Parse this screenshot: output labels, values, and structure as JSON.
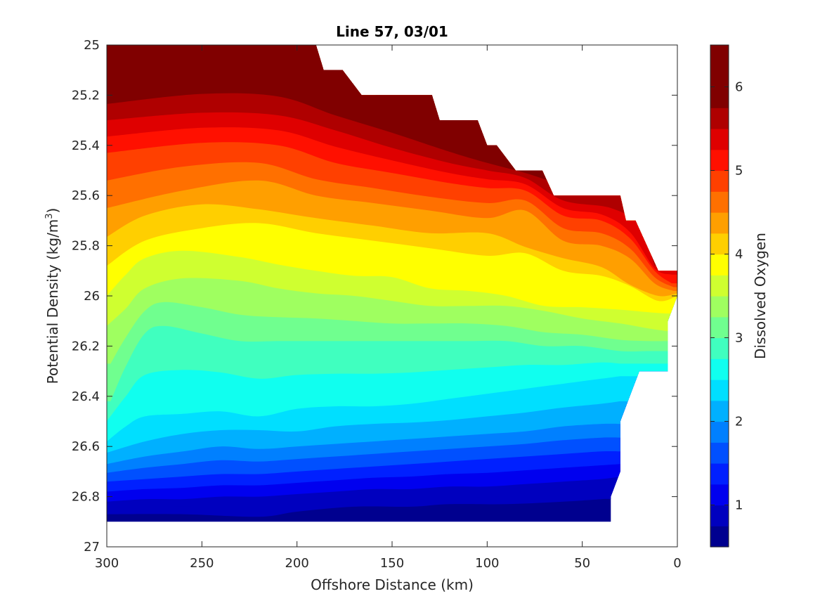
{
  "chart_data": {
    "type": "heatmap",
    "subtype": "filled-contour",
    "title": "Line 57, 03/01",
    "xlabel": "Offshore Distance (km)",
    "ylabel_main": "Potential Density (kg/m",
    "ylabel_sup": "3",
    "ylabel_close": ")",
    "colorbar_label": "Dissolved Oxygen",
    "x_ticks": [
      "300",
      "250",
      "200",
      "150",
      "100",
      "50",
      "0"
    ],
    "y_ticks": [
      "25",
      "25.2",
      "25.4",
      "25.6",
      "25.8",
      "26",
      "26.2",
      "26.4",
      "26.6",
      "26.8",
      "27"
    ],
    "colorbar_ticks": [
      "1",
      "2",
      "3",
      "4",
      "5",
      "6"
    ],
    "xlim": [
      300,
      0
    ],
    "ylim": [
      25,
      27
    ],
    "clim": [
      0.5,
      6.5
    ],
    "contour_levels": [
      0.5,
      0.75,
      1.0,
      1.25,
      1.5,
      1.75,
      2.0,
      2.25,
      2.5,
      2.75,
      3.0,
      3.25,
      3.5,
      3.75,
      4.0,
      4.25,
      4.5,
      4.75,
      5.0,
      5.25,
      5.5,
      5.75,
      6.0,
      6.25,
      6.5
    ],
    "colormap": [
      "#00008f",
      "#0000bf",
      "#0000ef",
      "#0020ff",
      "#0050ff",
      "#0080ff",
      "#00b0ff",
      "#00dfff",
      "#10ffef",
      "#40ffbf",
      "#70ff8f",
      "#9fff60",
      "#cfff30",
      "#ffff00",
      "#ffcf00",
      "#ff9f00",
      "#ff7000",
      "#ff4000",
      "#ff1000",
      "#df0000",
      "#af0000",
      "#800000",
      "#800000",
      "#800000"
    ],
    "data_top_boundary": [
      [
        300,
        25.0
      ],
      [
        190,
        25.0
      ],
      [
        186,
        25.1
      ],
      [
        176,
        25.1
      ],
      [
        166,
        25.2
      ],
      [
        129,
        25.2
      ],
      [
        125,
        25.3
      ],
      [
        105,
        25.3
      ],
      [
        100,
        25.4
      ],
      [
        95,
        25.4
      ],
      [
        85,
        25.5
      ],
      [
        71,
        25.5
      ],
      [
        65,
        25.6
      ],
      [
        30,
        25.6
      ],
      [
        27,
        25.7
      ],
      [
        22,
        25.7
      ],
      [
        10,
        25.9
      ],
      [
        0,
        25.9
      ]
    ],
    "data_bottom_boundary": [
      [
        300,
        26.9
      ],
      [
        35,
        26.9
      ],
      [
        35,
        26.8
      ],
      [
        30,
        26.7
      ],
      [
        30,
        26.5
      ],
      [
        25,
        26.4
      ],
      [
        20,
        26.3
      ],
      [
        5,
        26.3
      ],
      [
        5,
        26.1
      ],
      [
        0,
        26.0
      ]
    ],
    "isolines": [
      {
        "level": 6.0,
        "points": [
          [
            300,
            25.17
          ],
          [
            250,
            25.12
          ],
          [
            210,
            25.13
          ],
          [
            180,
            25.22
          ],
          [
            150,
            25.29
          ],
          [
            120,
            25.38
          ],
          [
            100,
            25.44
          ],
          [
            90,
            25.49
          ]
        ]
      },
      {
        "level": 5.5,
        "points": [
          [
            300,
            25.3
          ],
          [
            250,
            25.27
          ],
          [
            210,
            25.28
          ],
          [
            180,
            25.34
          ],
          [
            150,
            25.41
          ],
          [
            120,
            25.47
          ],
          [
            100,
            25.5
          ],
          [
            80,
            25.53
          ],
          [
            60,
            25.62
          ],
          [
            35,
            25.65
          ],
          [
            20,
            25.72
          ],
          [
            12,
            25.88
          ]
        ]
      },
      {
        "level": 5.0,
        "points": [
          [
            300,
            25.43
          ],
          [
            250,
            25.39
          ],
          [
            210,
            25.4
          ],
          [
            180,
            25.47
          ],
          [
            150,
            25.51
          ],
          [
            120,
            25.55
          ],
          [
            100,
            25.57
          ],
          [
            80,
            25.58
          ],
          [
            60,
            25.68
          ],
          [
            40,
            25.7
          ],
          [
            25,
            25.77
          ],
          [
            12,
            25.9
          ],
          [
            3,
            25.95
          ]
        ]
      },
      {
        "level": 4.5,
        "points": [
          [
            300,
            25.65
          ],
          [
            260,
            25.58
          ],
          [
            220,
            25.54
          ],
          [
            190,
            25.6
          ],
          [
            160,
            25.63
          ],
          [
            130,
            25.66
          ],
          [
            100,
            25.69
          ],
          [
            80,
            25.66
          ],
          [
            60,
            25.78
          ],
          [
            40,
            25.8
          ],
          [
            25,
            25.85
          ],
          [
            12,
            25.95
          ],
          [
            2,
            25.98
          ]
        ]
      },
      {
        "level": 4.0,
        "points": [
          [
            300,
            25.88
          ],
          [
            280,
            25.78
          ],
          [
            250,
            25.73
          ],
          [
            220,
            25.71
          ],
          [
            190,
            25.75
          ],
          [
            160,
            25.78
          ],
          [
            130,
            25.81
          ],
          [
            100,
            25.84
          ],
          [
            80,
            25.83
          ],
          [
            60,
            25.9
          ],
          [
            40,
            25.92
          ],
          [
            25,
            25.96
          ],
          [
            10,
            26.02
          ],
          [
            0,
            26.0
          ]
        ]
      },
      {
        "level": 3.5,
        "points": [
          [
            300,
            26.12
          ],
          [
            290,
            26.05
          ],
          [
            280,
            25.97
          ],
          [
            260,
            25.93
          ],
          [
            230,
            25.94
          ],
          [
            210,
            25.97
          ],
          [
            190,
            25.99
          ],
          [
            170,
            26.0
          ],
          [
            150,
            26.02
          ],
          [
            130,
            26.04
          ],
          [
            110,
            26.04
          ],
          [
            90,
            26.04
          ],
          [
            70,
            26.06
          ],
          [
            50,
            26.09
          ],
          [
            30,
            26.11
          ],
          [
            15,
            26.13
          ],
          [
            6,
            26.14
          ]
        ]
      },
      {
        "level": 3.0,
        "points": [
          [
            298,
            26.42
          ],
          [
            290,
            26.28
          ],
          [
            280,
            26.15
          ],
          [
            270,
            26.12
          ],
          [
            250,
            26.15
          ],
          [
            230,
            26.18
          ],
          [
            210,
            26.18
          ],
          [
            190,
            26.18
          ],
          [
            170,
            26.18
          ],
          [
            150,
            26.18
          ],
          [
            130,
            26.18
          ],
          [
            110,
            26.18
          ],
          [
            90,
            26.18
          ],
          [
            70,
            26.2
          ],
          [
            50,
            26.2
          ],
          [
            30,
            26.22
          ],
          [
            15,
            26.22
          ],
          [
            6,
            26.22
          ]
        ]
      },
      {
        "level": 2.5,
        "points": [
          [
            300,
            26.58
          ],
          [
            290,
            26.52
          ],
          [
            280,
            26.48
          ],
          [
            260,
            26.47
          ],
          [
            240,
            26.46
          ],
          [
            220,
            26.48
          ],
          [
            200,
            26.45
          ],
          [
            180,
            26.44
          ],
          [
            160,
            26.44
          ],
          [
            140,
            26.43
          ],
          [
            120,
            26.41
          ],
          [
            100,
            26.39
          ],
          [
            80,
            26.37
          ],
          [
            60,
            26.35
          ],
          [
            40,
            26.33
          ],
          [
            30,
            26.32
          ]
        ]
      },
      {
        "level": 2.0,
        "points": [
          [
            300,
            26.67
          ],
          [
            280,
            26.64
          ],
          [
            260,
            26.62
          ],
          [
            240,
            26.6
          ],
          [
            220,
            26.61
          ],
          [
            200,
            26.6
          ],
          [
            180,
            26.59
          ],
          [
            160,
            26.58
          ],
          [
            140,
            26.57
          ],
          [
            120,
            26.56
          ],
          [
            100,
            26.55
          ],
          [
            80,
            26.54
          ],
          [
            60,
            26.52
          ],
          [
            40,
            26.51
          ],
          [
            30,
            26.51
          ]
        ]
      },
      {
        "level": 1.5,
        "points": [
          [
            300,
            26.74
          ],
          [
            280,
            26.73
          ],
          [
            260,
            26.72
          ],
          [
            240,
            26.71
          ],
          [
            220,
            26.71
          ],
          [
            200,
            26.7
          ],
          [
            180,
            26.69
          ],
          [
            160,
            26.68
          ],
          [
            140,
            26.67
          ],
          [
            120,
            26.66
          ],
          [
            100,
            26.65
          ],
          [
            80,
            26.64
          ],
          [
            60,
            26.63
          ],
          [
            40,
            26.62
          ],
          [
            30,
            26.62
          ]
        ]
      },
      {
        "level": 1.0,
        "points": [
          [
            300,
            26.82
          ],
          [
            280,
            26.81
          ],
          [
            260,
            26.81
          ],
          [
            240,
            26.8
          ],
          [
            220,
            26.8
          ],
          [
            200,
            26.79
          ],
          [
            180,
            26.78
          ],
          [
            160,
            26.77
          ],
          [
            140,
            26.77
          ],
          [
            120,
            26.76
          ],
          [
            100,
            26.76
          ],
          [
            80,
            26.75
          ],
          [
            60,
            26.74
          ],
          [
            40,
            26.73
          ],
          [
            30,
            26.72
          ]
        ]
      },
      {
        "level": 0.75,
        "points": [
          [
            300,
            26.87
          ],
          [
            260,
            26.87
          ],
          [
            220,
            26.88
          ],
          [
            200,
            26.86
          ],
          [
            170,
            26.84
          ],
          [
            140,
            26.84
          ],
          [
            120,
            26.83
          ],
          [
            90,
            26.83
          ],
          [
            60,
            26.82
          ],
          [
            40,
            26.81
          ],
          [
            35,
            26.81
          ]
        ]
      }
    ]
  }
}
